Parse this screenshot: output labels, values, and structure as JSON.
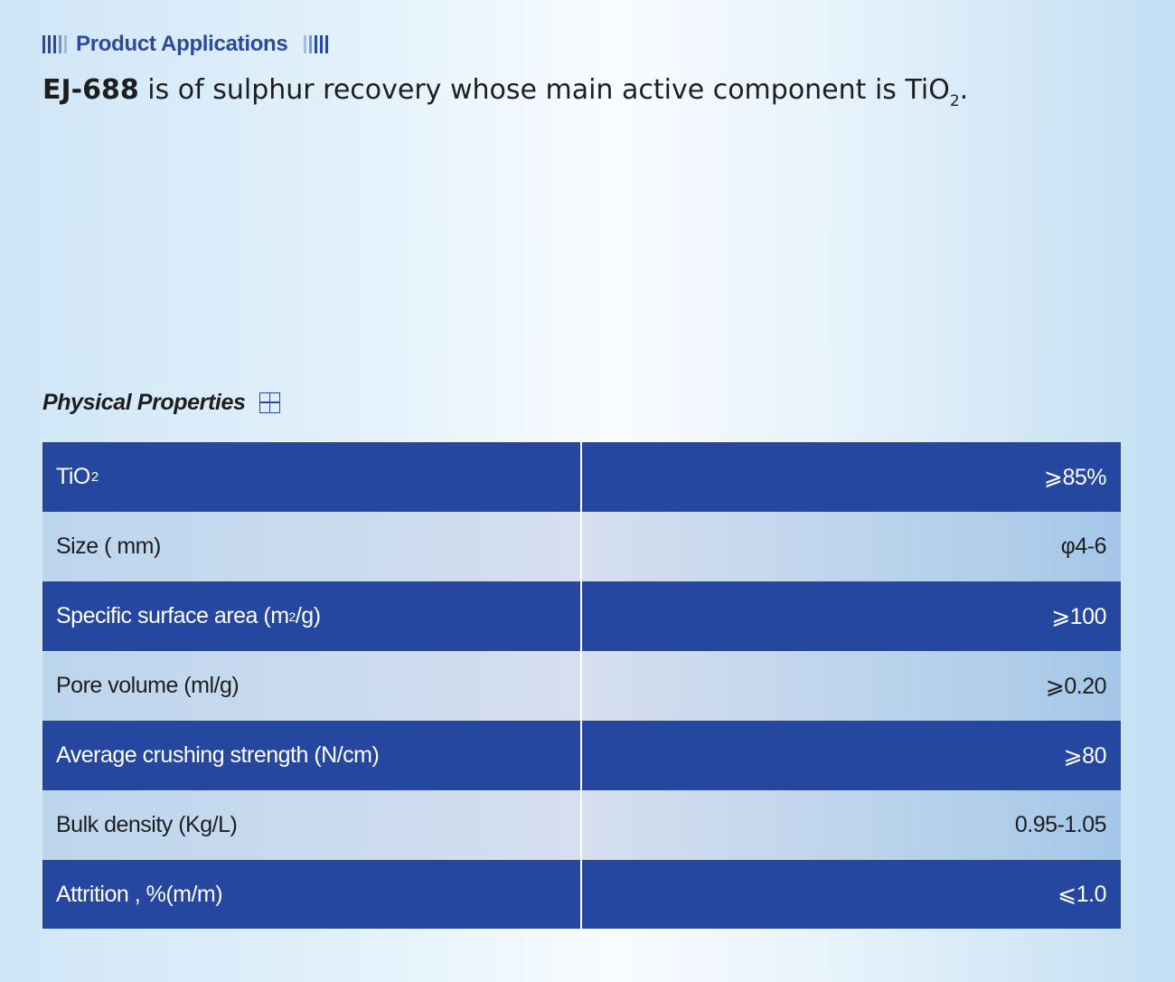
{
  "section": {
    "title": "Product Applications"
  },
  "headline": {
    "code": "EJ-688",
    "text": " is of sulphur recovery whose main active component is TiO",
    "subscript": "2",
    "end": "."
  },
  "properties": {
    "title": "Physical Properties",
    "rows": [
      {
        "label": "TiO",
        "label_sub": "2",
        "label_end": "",
        "value": "⩾85%"
      },
      {
        "label": "Size ( mm)",
        "value": "φ4-6"
      },
      {
        "label": "Specific surface area (m",
        "label_sup": "2",
        "label_end": "/g)",
        "value": "⩾100"
      },
      {
        "label": "Pore volume (ml/g)",
        "value": "⩾0.20"
      },
      {
        "label": "Average crushing strength (N/cm)",
        "value": "⩾80"
      },
      {
        "label": "Bulk density (Kg/L)",
        "value": "0.95-1.05"
      },
      {
        "label": "Attrition , %(m/m)",
        "value": "⩽1.0"
      }
    ]
  },
  "colors": {
    "accent": "#2a49a1",
    "row_dark": "#2547a0",
    "row_light": "#c8dbef",
    "text": "#1e1e1e"
  },
  "icons": {
    "section_bars": "bars-icon",
    "props_grid": "grid-icon"
  }
}
